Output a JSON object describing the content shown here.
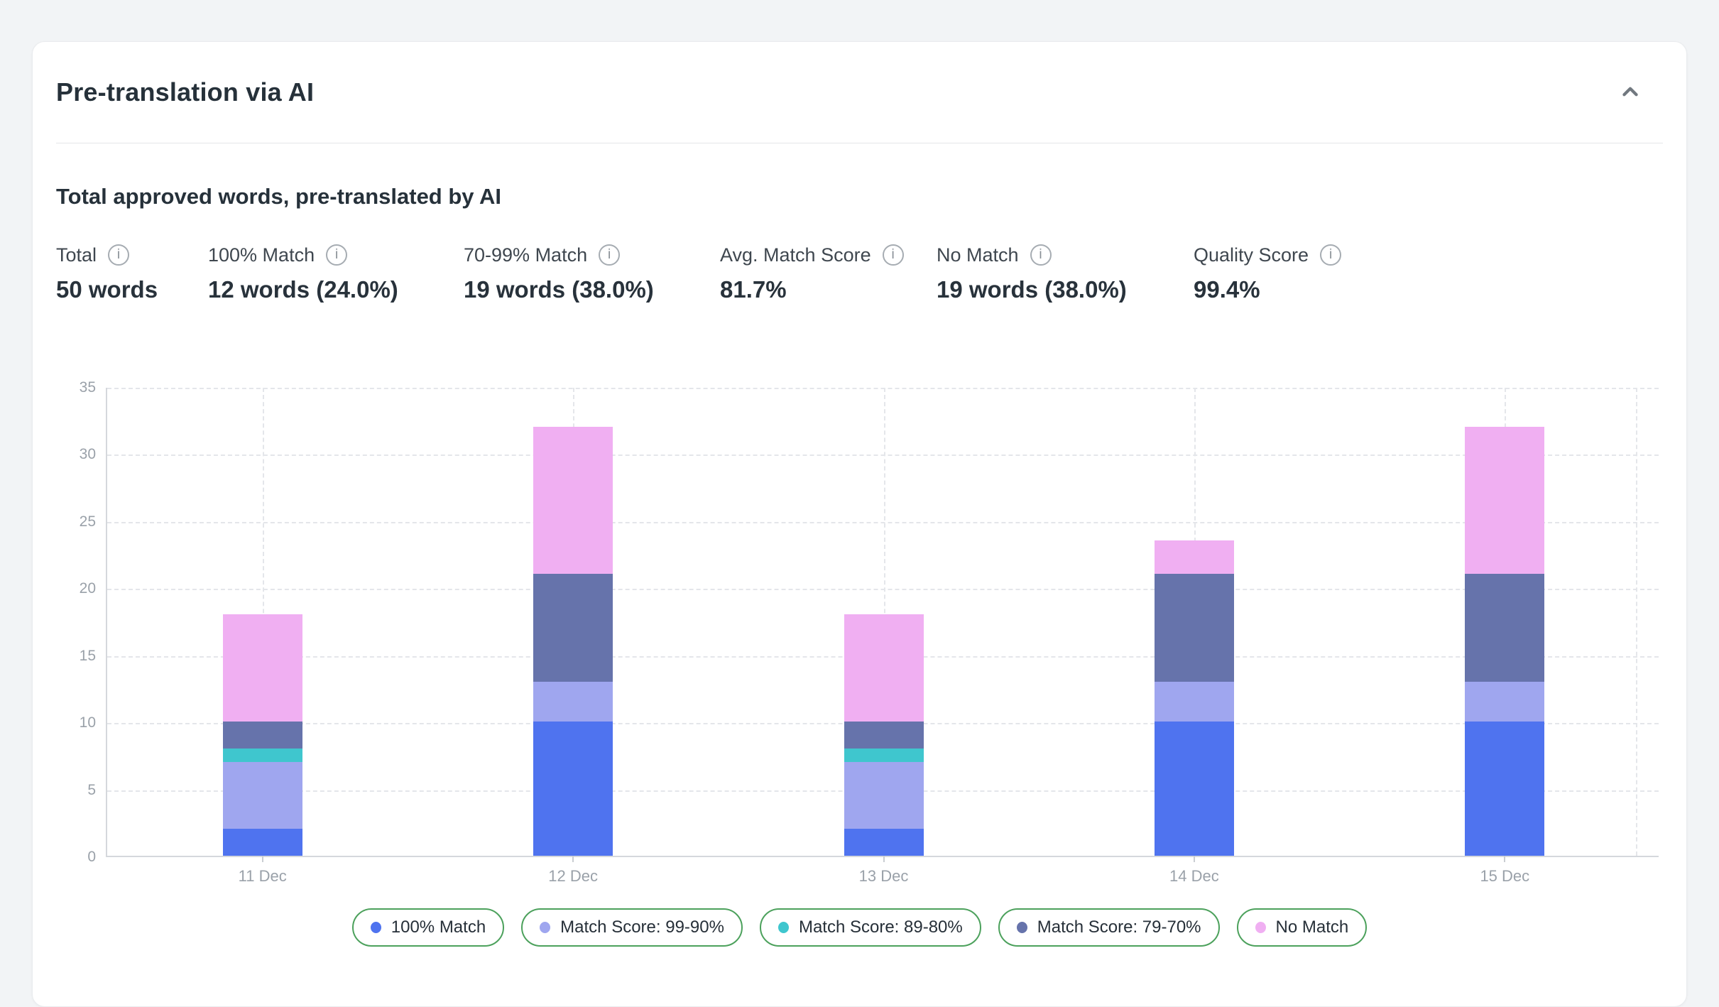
{
  "page": {
    "background": "#f2f4f6"
  },
  "card": {
    "title": "Pre-translation via AI",
    "section_heading": "Total approved words, pre-translated by AI"
  },
  "icons": {
    "info": "i",
    "collapse": "chevron-up"
  },
  "stats": [
    {
      "label": "Total",
      "value": "50 words"
    },
    {
      "label": "100% Match",
      "value": "12 words (24.0%)"
    },
    {
      "label": "70-99% Match",
      "value": "19 words (38.0%)"
    },
    {
      "label": "Avg. Match Score",
      "value": "81.7%"
    },
    {
      "label": "No Match",
      "value": "19 words (38.0%)"
    },
    {
      "label": "Quality Score",
      "value": "99.4%"
    }
  ],
  "chart_data": {
    "type": "bar",
    "stacked": true,
    "title": "",
    "xlabel": "",
    "ylabel": "",
    "categories": [
      "11 Dec",
      "12 Dec",
      "13 Dec",
      "14 Dec",
      "15 Dec"
    ],
    "series": [
      {
        "name": "100% Match",
        "color": "#4f73ef",
        "values": [
          2,
          10,
          2,
          10,
          10
        ]
      },
      {
        "name": "Match Score: 99-90%",
        "color": "#9fa6ef",
        "values": [
          5,
          3,
          5,
          3,
          3
        ]
      },
      {
        "name": "Match Score: 89-80%",
        "color": "#3fc6ce",
        "values": [
          1,
          0,
          1,
          0,
          0
        ]
      },
      {
        "name": "Match Score: 79-70%",
        "color": "#6673ab",
        "values": [
          2,
          8,
          2,
          8,
          8
        ]
      },
      {
        "name": "No Match",
        "color": "#f0aff2",
        "values": [
          8,
          11,
          8,
          2.5,
          11
        ]
      }
    ],
    "totals": [
      18,
      32,
      18,
      23.5,
      32
    ],
    "ylim": [
      0,
      35
    ],
    "ytick_step": 5,
    "grid": true,
    "gridline_color": "#e4e6ea",
    "axis_tick_color": "#9aa1a9",
    "legend_position": "bottom",
    "legend_border_color": "#4ca15c"
  }
}
